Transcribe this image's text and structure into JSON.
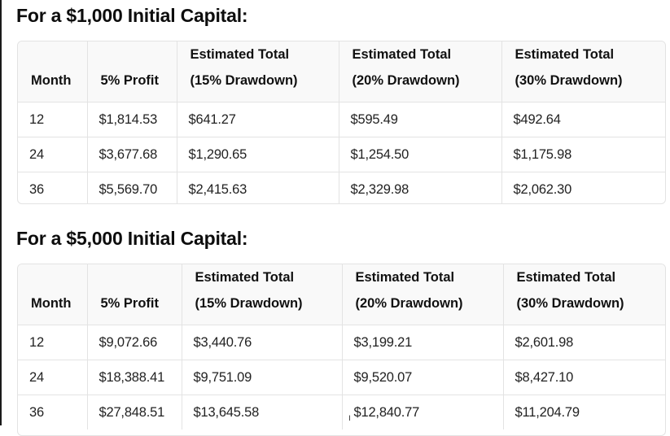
{
  "sections": [
    {
      "title": "For a $1,000 Initial Capital:",
      "headers": {
        "month": "Month",
        "profit": "5% Profit",
        "dd15": [
          "Estimated Total",
          "(15% Drawdown)"
        ],
        "dd20": [
          "Estimated Total",
          "(20% Drawdown)"
        ],
        "dd30": [
          "Estimated Total",
          "(30% Drawdown)"
        ]
      },
      "rows": [
        [
          "12",
          "$1,814.53",
          "$641.27",
          "$595.49",
          "$492.64"
        ],
        [
          "24",
          "$3,677.68",
          "$1,290.65",
          "$1,254.50",
          "$1,175.98"
        ],
        [
          "36",
          "$5,569.70",
          "$2,415.63",
          "$2,329.98",
          "$2,062.30"
        ]
      ]
    },
    {
      "title": "For a $5,000 Initial Capital:",
      "headers": {
        "month": "Month",
        "profit": "5% Profit",
        "dd15": [
          "Estimated Total",
          "(15% Drawdown)"
        ],
        "dd20": [
          "Estimated Total",
          "(20% Drawdown)"
        ],
        "dd30": [
          "Estimated Total",
          "(30% Drawdown)"
        ]
      },
      "rows": [
        [
          "12",
          "$9,072.66",
          "$3,440.76",
          "$3,199.21",
          "$2,601.98"
        ],
        [
          "24",
          "$18,388.41",
          "$9,751.09",
          "$9,520.07",
          "$8,427.10"
        ],
        [
          "36",
          "$27,848.51",
          "$13,645.58",
          "$12,840.77",
          "$11,204.79"
        ]
      ]
    }
  ]
}
